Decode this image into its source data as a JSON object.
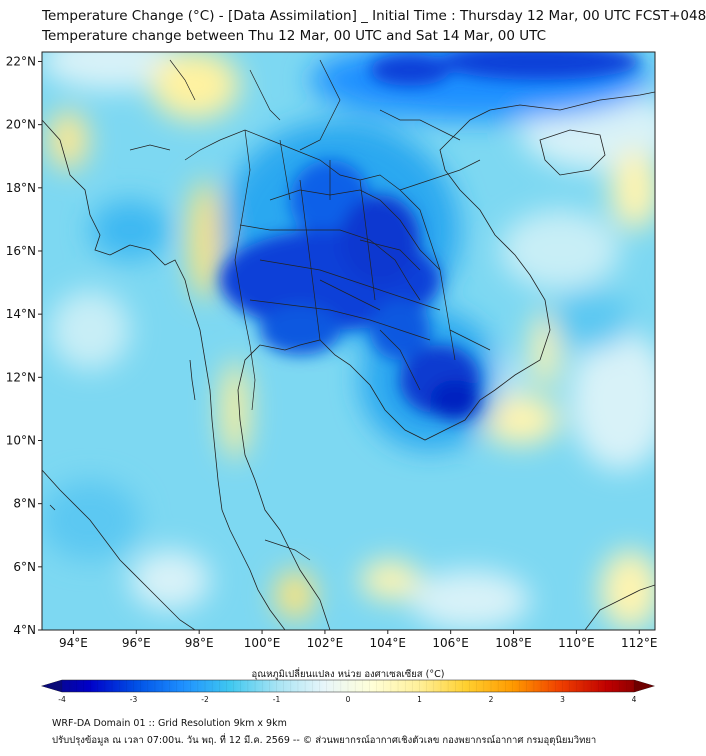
{
  "title": {
    "line1": "Temperature Change (°C) - [Data Assimilation] _ Initial Time : Thursday 12 Mar, 00 UTC FCST+048",
    "line2": "Temperature change between Thu 12 Mar, 00 UTC and Sat 14 Mar, 00 UTC"
  },
  "map": {
    "lon_range": [
      93,
      112.5
    ],
    "lat_range": [
      4,
      22.3
    ],
    "lon_ticks": [
      "94°E",
      "96°E",
      "98°E",
      "100°E",
      "102°E",
      "104°E",
      "106°E",
      "108°E",
      "110°E",
      "112°E"
    ],
    "lat_ticks": [
      "4°N",
      "6°N",
      "8°N",
      "10°N",
      "12°N",
      "14°N",
      "16°N",
      "18°N",
      "20°N",
      "22°N"
    ],
    "lon_values": [
      94,
      96,
      98,
      100,
      102,
      104,
      106,
      108,
      110,
      112
    ],
    "lat_values": [
      4,
      6,
      8,
      10,
      12,
      14,
      16,
      18,
      20,
      22
    ]
  },
  "colorbar": {
    "label": "อุณหภูมิเปลี่ยนแปลง หน่วย องศาเซลเซียส (°C)",
    "ticks": [
      "-4",
      "-3",
      "-2",
      "-1",
      "0",
      "1",
      "2",
      "3",
      "4"
    ],
    "tick_values": [
      -4,
      -3,
      -2,
      -1,
      0,
      1,
      2,
      3,
      4
    ],
    "min": -4,
    "max": 4,
    "colors": [
      "#0a0a78",
      "#0000c8",
      "#0050e6",
      "#1e90ff",
      "#40c8f0",
      "#a8e4f4",
      "#e8f6fa",
      "#ffffd8",
      "#fff09a",
      "#ffd030",
      "#ff9a00",
      "#f04000",
      "#c00000",
      "#6e0000"
    ]
  },
  "footer": {
    "line1": "WRF-DA Domain 01 :: Grid Resolution 9km x 9km",
    "line2": "ปรับปรุงข้อมูล ณ เวลา 07:00น. วัน พฤ. ที่ 12 มี.ค. 2569 -- © ส่วนพยากรณ์อากาศเชิงตัวเลข กองพยากรณ์อากาศ กรมอุตุนิยมวิทยา"
  }
}
